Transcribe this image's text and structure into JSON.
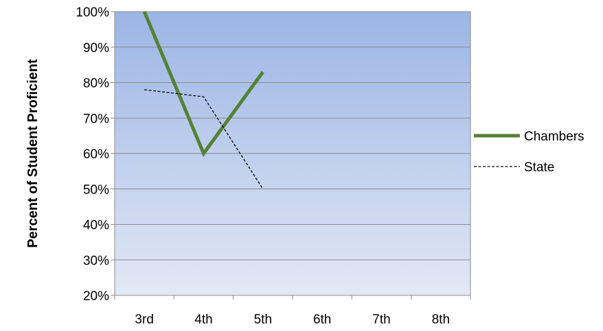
{
  "chart_data": {
    "type": "line",
    "title": "",
    "xlabel": "",
    "ylabel": "Percent of Student Proficient",
    "categories": [
      "3rd",
      "4th",
      "5th",
      "6th",
      "7th",
      "8th"
    ],
    "ylim": [
      20,
      100
    ],
    "yticks": [
      "20%",
      "30%",
      "40%",
      "50%",
      "60%",
      "70%",
      "80%",
      "90%",
      "100%"
    ],
    "grid": true,
    "legend_position": "right",
    "series": [
      {
        "name": "Chambers",
        "values": [
          100,
          60,
          83,
          null,
          null,
          null
        ],
        "color": "#548235",
        "style": "solid"
      },
      {
        "name": "State",
        "values": [
          78,
          76,
          50,
          null,
          null,
          null
        ],
        "color": "#000000",
        "style": "dashed"
      }
    ]
  }
}
